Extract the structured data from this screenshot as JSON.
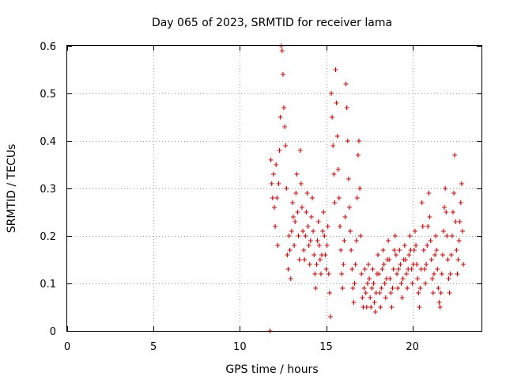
{
  "chart_data": {
    "type": "scatter",
    "title": "Day 065 of 2023, SRMTID for receiver lama",
    "xlabel": "GPS time / hours",
    "ylabel": "SRMTID / TECUs",
    "xlim": [
      0,
      24
    ],
    "ylim": [
      0,
      0.6
    ],
    "xticks": [
      "0",
      "5",
      "10",
      "15",
      "20"
    ],
    "yticks": [
      "0",
      "0.1",
      "0.2",
      "0.3",
      "0.4",
      "0.5",
      "0.6"
    ],
    "grid": true,
    "marker": "plus",
    "color": "#e00000",
    "series": [
      {
        "name": "SRMTID",
        "points": [
          [
            11.75,
            0.0
          ],
          [
            11.8,
            0.36
          ],
          [
            11.85,
            0.31
          ],
          [
            11.9,
            0.28
          ],
          [
            11.95,
            0.33
          ],
          [
            12.0,
            0.26
          ],
          [
            12.05,
            0.22
          ],
          [
            12.1,
            0.35
          ],
          [
            12.15,
            0.28
          ],
          [
            12.2,
            0.18
          ],
          [
            12.25,
            0.31
          ],
          [
            12.3,
            0.38
          ],
          [
            12.35,
            0.45
          ],
          [
            12.4,
            0.6
          ],
          [
            12.45,
            0.59
          ],
          [
            12.5,
            0.54
          ],
          [
            12.55,
            0.47
          ],
          [
            12.6,
            0.43
          ],
          [
            12.65,
            0.39
          ],
          [
            12.7,
            0.3
          ],
          [
            12.75,
            0.16
          ],
          [
            12.8,
            0.13
          ],
          [
            12.85,
            0.2
          ],
          [
            12.9,
            0.17
          ],
          [
            12.95,
            0.11
          ],
          [
            13.0,
            0.21
          ],
          [
            13.05,
            0.27
          ],
          [
            13.1,
            0.24
          ],
          [
            13.15,
            0.18
          ],
          [
            13.2,
            0.23
          ],
          [
            13.25,
            0.29
          ],
          [
            13.3,
            0.33
          ],
          [
            13.35,
            0.25
          ],
          [
            13.4,
            0.2
          ],
          [
            13.45,
            0.15
          ],
          [
            13.5,
            0.38
          ],
          [
            13.55,
            0.31
          ],
          [
            13.6,
            0.26
          ],
          [
            13.65,
            0.21
          ],
          [
            13.7,
            0.17
          ],
          [
            13.75,
            0.15
          ],
          [
            13.8,
            0.2
          ],
          [
            13.85,
            0.25
          ],
          [
            13.9,
            0.29
          ],
          [
            13.95,
            0.22
          ],
          [
            14.0,
            0.18
          ],
          [
            14.05,
            0.14
          ],
          [
            14.1,
            0.19
          ],
          [
            14.15,
            0.24
          ],
          [
            14.2,
            0.28
          ],
          [
            14.25,
            0.21
          ],
          [
            14.3,
            0.16
          ],
          [
            14.35,
            0.12
          ],
          [
            14.4,
            0.09
          ],
          [
            14.45,
            0.14
          ],
          [
            14.5,
            0.19
          ],
          [
            14.55,
            0.23
          ],
          [
            14.6,
            0.18
          ],
          [
            14.65,
            0.15
          ],
          [
            14.7,
            0.12
          ],
          [
            14.75,
            0.16
          ],
          [
            14.8,
            0.21
          ],
          [
            14.85,
            0.25
          ],
          [
            14.9,
            0.2
          ],
          [
            14.95,
            0.16
          ],
          [
            15.0,
            0.13
          ],
          [
            15.05,
            0.18
          ],
          [
            15.1,
            0.22
          ],
          [
            15.15,
            0.12
          ],
          [
            15.2,
            0.08
          ],
          [
            15.25,
            0.03
          ],
          [
            15.3,
            0.5
          ],
          [
            15.35,
            0.45
          ],
          [
            15.4,
            0.39
          ],
          [
            15.45,
            0.33
          ],
          [
            15.5,
            0.27
          ],
          [
            15.55,
            0.55
          ],
          [
            15.6,
            0.48
          ],
          [
            15.65,
            0.41
          ],
          [
            15.7,
            0.34
          ],
          [
            15.75,
            0.28
          ],
          [
            15.8,
            0.22
          ],
          [
            15.85,
            0.17
          ],
          [
            15.9,
            0.12
          ],
          [
            15.95,
            0.09
          ],
          [
            16.0,
            0.14
          ],
          [
            16.05,
            0.19
          ],
          [
            16.1,
            0.24
          ],
          [
            16.15,
            0.52
          ],
          [
            16.2,
            0.47
          ],
          [
            16.25,
            0.4
          ],
          [
            16.3,
            0.32
          ],
          [
            16.35,
            0.26
          ],
          [
            16.4,
            0.21
          ],
          [
            16.45,
            0.17
          ],
          [
            16.5,
            0.13
          ],
          [
            16.55,
            0.09
          ],
          [
            16.6,
            0.06
          ],
          [
            16.65,
            0.1
          ],
          [
            16.7,
            0.14
          ],
          [
            16.75,
            0.19
          ],
          [
            16.8,
            0.28
          ],
          [
            16.85,
            0.37
          ],
          [
            16.9,
            0.4
          ],
          [
            16.95,
            0.3
          ],
          [
            17.0,
            0.2
          ],
          [
            17.05,
            0.12
          ],
          [
            17.1,
            0.07
          ],
          [
            17.15,
            0.05
          ],
          [
            17.2,
            0.09
          ],
          [
            17.25,
            0.13
          ],
          [
            17.3,
            0.08
          ],
          [
            17.35,
            0.05
          ],
          [
            17.4,
            0.1
          ],
          [
            17.45,
            0.14
          ],
          [
            17.5,
            0.11
          ],
          [
            17.55,
            0.07
          ],
          [
            17.6,
            0.05
          ],
          [
            17.65,
            0.09
          ],
          [
            17.7,
            0.13
          ],
          [
            17.75,
            0.1
          ],
          [
            17.8,
            0.06
          ],
          [
            17.85,
            0.04
          ],
          [
            17.9,
            0.08
          ],
          [
            17.95,
            0.12
          ],
          [
            18.0,
            0.16
          ],
          [
            18.05,
            0.12
          ],
          [
            18.1,
            0.08
          ],
          [
            18.15,
            0.05
          ],
          [
            18.2,
            0.09
          ],
          [
            18.25,
            0.13
          ],
          [
            18.3,
            0.17
          ],
          [
            18.35,
            0.14
          ],
          [
            18.4,
            0.1
          ],
          [
            18.45,
            0.07
          ],
          [
            18.5,
            0.11
          ],
          [
            18.55,
            0.15
          ],
          [
            18.6,
            0.19
          ],
          [
            18.65,
            0.15
          ],
          [
            18.7,
            0.11
          ],
          [
            18.75,
            0.08
          ],
          [
            18.8,
            0.05
          ],
          [
            18.85,
            0.09
          ],
          [
            18.9,
            0.13
          ],
          [
            18.95,
            0.17
          ],
          [
            19.0,
            0.2
          ],
          [
            19.05,
            0.16
          ],
          [
            19.1,
            0.12
          ],
          [
            19.15,
            0.09
          ],
          [
            19.2,
            0.13
          ],
          [
            19.25,
            0.17
          ],
          [
            19.3,
            0.14
          ],
          [
            19.35,
            0.1
          ],
          [
            19.4,
            0.07
          ],
          [
            19.45,
            0.11
          ],
          [
            19.5,
            0.15
          ],
          [
            19.55,
            0.18
          ],
          [
            19.6,
            0.15
          ],
          [
            19.65,
            0.12
          ],
          [
            19.7,
            0.09
          ],
          [
            19.75,
            0.13
          ],
          [
            19.8,
            0.16
          ],
          [
            19.85,
            0.2
          ],
          [
            19.9,
            0.17
          ],
          [
            19.95,
            0.13
          ],
          [
            20.0,
            0.1
          ],
          [
            20.05,
            0.14
          ],
          [
            20.1,
            0.17
          ],
          [
            20.15,
            0.21
          ],
          [
            20.2,
            0.18
          ],
          [
            20.25,
            0.14
          ],
          [
            20.3,
            0.11
          ],
          [
            20.35,
            0.08
          ],
          [
            20.4,
            0.05
          ],
          [
            20.45,
            0.09
          ],
          [
            20.5,
            0.13
          ],
          [
            20.55,
            0.27
          ],
          [
            20.6,
            0.22
          ],
          [
            20.65,
            0.17
          ],
          [
            20.7,
            0.13
          ],
          [
            20.75,
            0.1
          ],
          [
            20.8,
            0.14
          ],
          [
            20.85,
            0.18
          ],
          [
            20.9,
            0.22
          ],
          [
            20.95,
            0.29
          ],
          [
            21.0,
            0.24
          ],
          [
            21.05,
            0.19
          ],
          [
            21.1,
            0.15
          ],
          [
            21.15,
            0.11
          ],
          [
            21.2,
            0.08
          ],
          [
            21.25,
            0.12
          ],
          [
            21.3,
            0.16
          ],
          [
            21.35,
            0.2
          ],
          [
            21.4,
            0.17
          ],
          [
            21.45,
            0.13
          ],
          [
            21.5,
            0.09
          ],
          [
            21.55,
            0.06
          ],
          [
            21.6,
            0.05
          ],
          [
            21.65,
            0.08
          ],
          [
            21.7,
            0.12
          ],
          [
            21.75,
            0.16
          ],
          [
            21.8,
            0.21
          ],
          [
            21.85,
            0.26
          ],
          [
            21.9,
            0.3
          ],
          [
            21.95,
            0.25
          ],
          [
            22.0,
            0.2
          ],
          [
            22.05,
            0.15
          ],
          [
            22.1,
            0.11
          ],
          [
            22.15,
            0.08
          ],
          [
            22.2,
            0.12
          ],
          [
            22.25,
            0.16
          ],
          [
            22.3,
            0.2
          ],
          [
            22.35,
            0.25
          ],
          [
            22.4,
            0.29
          ],
          [
            22.45,
            0.37
          ],
          [
            22.5,
            0.23
          ],
          [
            22.55,
            0.17
          ],
          [
            22.6,
            0.12
          ],
          [
            22.65,
            0.15
          ],
          [
            22.7,
            0.19
          ],
          [
            22.75,
            0.23
          ],
          [
            22.8,
            0.27
          ],
          [
            22.85,
            0.31
          ],
          [
            22.9,
            0.21
          ],
          [
            22.95,
            0.14
          ]
        ]
      }
    ]
  }
}
